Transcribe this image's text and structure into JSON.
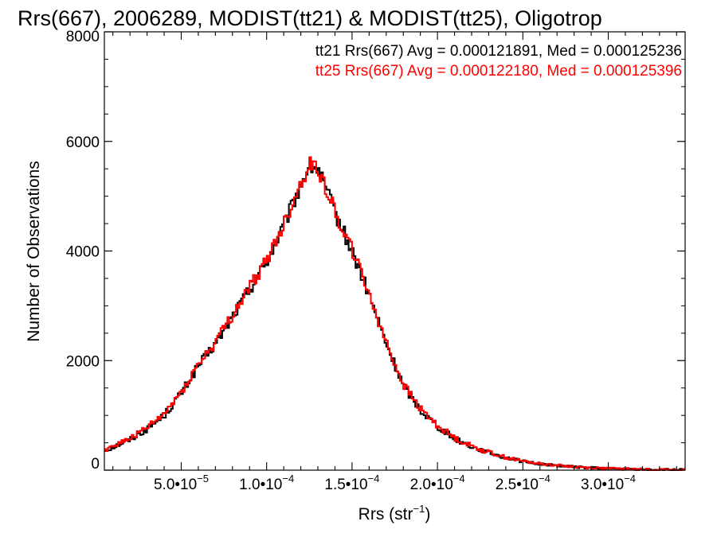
{
  "chart_data": {
    "type": "line",
    "title": "Rrs(667), 2006289, MODIST(tt21) & MODIST(tt25), Oligotrop",
    "xlabel": {
      "base": "Rrs (str",
      "sup": "−1",
      "end": ")"
    },
    "ylabel": "Number of Observations",
    "xlim": [
      5e-06,
      0.000345
    ],
    "ylim": [
      0,
      8000
    ],
    "x_ticks": [
      {
        "value": 5e-05,
        "mant": "5.0•10",
        "exp": "−5"
      },
      {
        "value": 0.0001,
        "mant": "1.0•10",
        "exp": "−4"
      },
      {
        "value": 0.00015,
        "mant": "1.5•10",
        "exp": "−4"
      },
      {
        "value": 0.0002,
        "mant": "2.0•10",
        "exp": "−4"
      },
      {
        "value": 0.00025,
        "mant": "2.5•10",
        "exp": "−4"
      },
      {
        "value": 0.0003,
        "mant": "3.0•10",
        "exp": "−4"
      }
    ],
    "y_ticks": [
      0,
      2000,
      4000,
      6000,
      8000
    ],
    "grid": false,
    "legend_position": "top-right",
    "annotations": [
      "tt21 Rrs(667) Avg = 0.000121891, Med = 0.000125236",
      "tt25 Rrs(667) Avg = 0.000122180, Med = 0.000125396"
    ],
    "colors": {
      "tt21": "#000000",
      "tt25": "#ff0000"
    },
    "series_profile": {
      "x_start": 5e-06,
      "x_end": 0.000345,
      "bin_width": 1e-06,
      "x": [
        5e-06,
        2e-05,
        3e-05,
        4e-05,
        5e-05,
        6e-05,
        7e-05,
        8e-05,
        9e-05,
        0.0001,
        0.00011,
        0.00012,
        0.000125,
        0.00013,
        0.00014,
        0.00015,
        0.00016,
        0.00017,
        0.00018,
        0.00019,
        0.0002,
        0.00021,
        0.00022,
        0.00023,
        0.00024,
        0.00025,
        0.00026,
        0.00027,
        0.00028,
        0.00029,
        0.0003,
        0.00031,
        0.00032,
        0.00033,
        0.000345
      ],
      "tt21": [
        350,
        560,
        750,
        1000,
        1400,
        1900,
        2300,
        2800,
        3300,
        3800,
        4450,
        5200,
        5550,
        5500,
        4700,
        4000,
        3200,
        2300,
        1550,
        1100,
        800,
        580,
        430,
        320,
        230,
        160,
        115,
        85,
        60,
        42,
        30,
        20,
        14,
        10,
        6
      ],
      "tt25": [
        370,
        580,
        770,
        1020,
        1430,
        1930,
        2330,
        2830,
        3330,
        3830,
        4480,
        5230,
        5580,
        5530,
        4730,
        4030,
        3230,
        2330,
        1570,
        1120,
        815,
        590,
        440,
        328,
        236,
        165,
        119,
        88,
        62,
        44,
        31,
        21,
        15,
        10,
        6
      ]
    },
    "series": [
      {
        "name": "tt21",
        "color": "#000000"
      },
      {
        "name": "tt25",
        "color": "#ff0000"
      }
    ]
  }
}
